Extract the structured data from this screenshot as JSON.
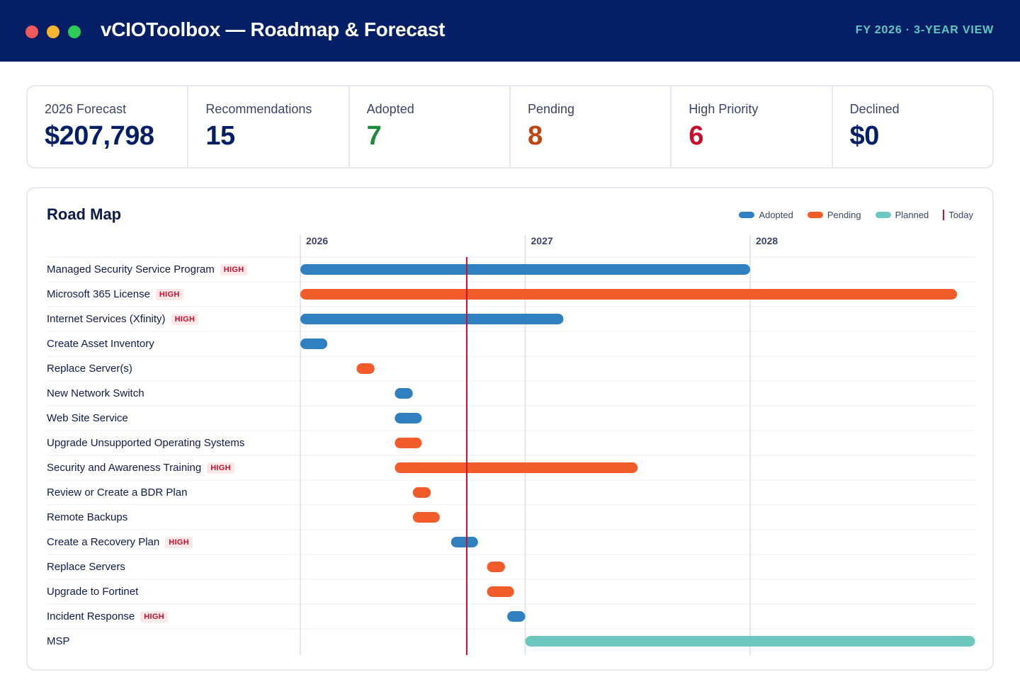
{
  "window": {
    "title": "vCIOToolbox — Roadmap & Forecast",
    "view_label": "FY 2026 · 3-YEAR VIEW"
  },
  "kpis": [
    {
      "label": "2026 Forecast",
      "value": "$207,798",
      "color": "#041f66"
    },
    {
      "label": "Recommendations",
      "value": "15",
      "color": "#041f66"
    },
    {
      "label": "Adopted",
      "value": "7",
      "color": "#1e8a3c"
    },
    {
      "label": "Pending",
      "value": "8",
      "color": "#c0440f"
    },
    {
      "label": "High Priority",
      "value": "6",
      "color": "#c8102e"
    },
    {
      "label": "Declined",
      "value": "$0",
      "color": "#041f66"
    }
  ],
  "roadmap": {
    "title": "Road Map",
    "legend": {
      "adopted": "Adopted",
      "pending": "Pending",
      "planned": "Planned",
      "today": "Today"
    },
    "high_tag": "HIGH",
    "years": [
      "2026",
      "2027",
      "2028"
    ],
    "today": 2026.74,
    "colors": {
      "adopted": "#2f80c0",
      "pending": "#f25c2a",
      "planned": "#6cc8be",
      "today": "#c8102e"
    },
    "items": [
      {
        "name": "Managed Security Service Program",
        "high": true,
        "status": "adopted",
        "start": 2026.0,
        "end": 2028.0
      },
      {
        "name": "Microsoft 365 License",
        "high": true,
        "status": "pending",
        "start": 2026.0,
        "end": 2028.92
      },
      {
        "name": "Internet Services (Xfinity)",
        "high": true,
        "status": "adopted",
        "start": 2026.0,
        "end": 2027.17
      },
      {
        "name": "Create Asset Inventory",
        "high": false,
        "status": "adopted",
        "start": 2026.0,
        "end": 2026.12
      },
      {
        "name": "Replace Server(s)",
        "high": false,
        "status": "pending",
        "start": 2026.25,
        "end": 2026.33
      },
      {
        "name": "New Network Switch",
        "high": false,
        "status": "adopted",
        "start": 2026.42,
        "end": 2026.5
      },
      {
        "name": "Web Site Service",
        "high": false,
        "status": "adopted",
        "start": 2026.42,
        "end": 2026.54
      },
      {
        "name": "Upgrade Unsupported Operating Systems",
        "high": false,
        "status": "pending",
        "start": 2026.42,
        "end": 2026.54
      },
      {
        "name": "Security and Awareness Training",
        "high": true,
        "status": "pending",
        "start": 2026.42,
        "end": 2027.5
      },
      {
        "name": "Review or Create a BDR Plan",
        "high": false,
        "status": "pending",
        "start": 2026.5,
        "end": 2026.58
      },
      {
        "name": "Remote Backups",
        "high": false,
        "status": "pending",
        "start": 2026.5,
        "end": 2026.62
      },
      {
        "name": "Create a Recovery Plan",
        "high": true,
        "status": "adopted",
        "start": 2026.67,
        "end": 2026.79
      },
      {
        "name": "Replace Servers",
        "high": false,
        "status": "pending",
        "start": 2026.83,
        "end": 2026.91
      },
      {
        "name": "Upgrade to Fortinet",
        "high": false,
        "status": "pending",
        "start": 2026.83,
        "end": 2026.95
      },
      {
        "name": "Incident Response",
        "high": true,
        "status": "adopted",
        "start": 2026.92,
        "end": 2027.0
      },
      {
        "name": "MSP",
        "high": false,
        "status": "planned",
        "start": 2027.0,
        "end": 2029.0
      }
    ]
  }
}
